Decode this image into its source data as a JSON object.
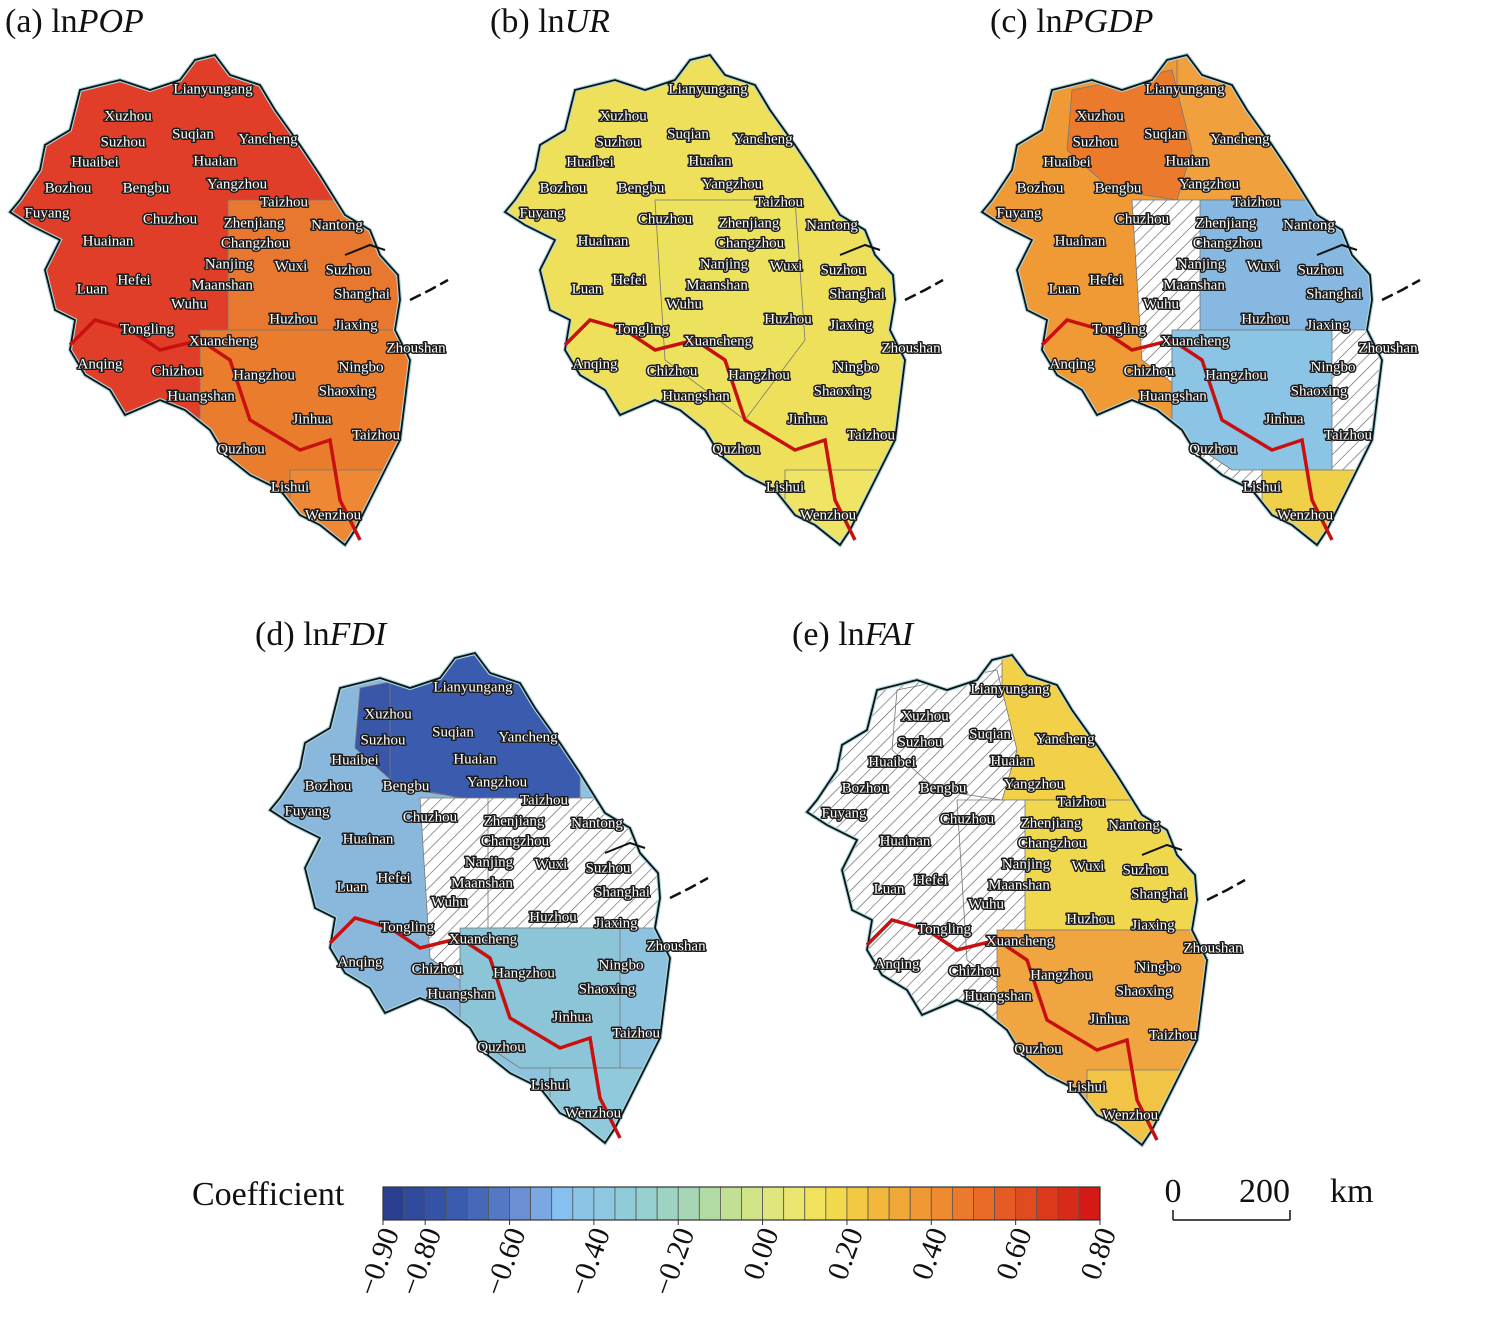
{
  "panels": [
    {
      "prefix": "(a) ln",
      "variable": "POP"
    },
    {
      "prefix": "(b) ln",
      "variable": "UR"
    },
    {
      "prefix": "(c) ln",
      "variable": "PGDP"
    },
    {
      "prefix": "(d) ln",
      "variable": "FDI"
    },
    {
      "prefix": "(e) ln",
      "variable": "FAI"
    }
  ],
  "cities": [
    "Lianyungang",
    "Xuzhou",
    "Suqian",
    "Yancheng",
    "Suzhou",
    "Huaian",
    "Huaibei",
    "Bozhou",
    "Bengbu",
    "Yangzhou",
    "Taizhou",
    "Fuyang",
    "Chuzhou",
    "Zhenjiang",
    "Nantong",
    "Huainan",
    "Changzhou",
    "Nanjing",
    "Wuxi",
    "Suzhou",
    "Hefei",
    "Luan",
    "Maanshan",
    "Shanghai",
    "Wuhu",
    "Huzhou",
    "Jiaxing",
    "Tongling",
    "Zhoushan",
    "Xuancheng",
    "Anqing",
    "Chizhou",
    "Ningbo",
    "Hangzhou",
    "Huangshan",
    "Shaoxing",
    "Jinhua",
    "Taizhou",
    "Quzhou",
    "Lishui",
    "Wenzhou"
  ],
  "legend": {
    "title": "Coefficient",
    "lim": [
      -0.9,
      0.8
    ],
    "ticks": [
      {
        "value": -0.9,
        "label": "−0.90"
      },
      {
        "value": -0.8,
        "label": "−0.80"
      },
      {
        "value": -0.6,
        "label": "−0.60"
      },
      {
        "value": -0.4,
        "label": "−0.40"
      },
      {
        "value": -0.2,
        "label": "−0.20"
      },
      {
        "value": 0,
        "label": "0.00"
      },
      {
        "value": 0.2,
        "label": "0.20"
      },
      {
        "value": 0.4,
        "label": "0.40"
      },
      {
        "value": 0.6,
        "label": "0.60"
      },
      {
        "value": 0.8,
        "label": "0.80"
      }
    ],
    "colors": [
      "#2a3f8f",
      "#2f4a9c",
      "#3553a6",
      "#3b5cae",
      "#4668b8",
      "#5478c4",
      "#6a8fd3",
      "#7ba8e3",
      "#86c0f0",
      "#8cc4e6",
      "#8ec8e0",
      "#90ccd8",
      "#96d0ce",
      "#9dd3c2",
      "#a6d6b4",
      "#b2dba4",
      "#c2e094",
      "#d2e488",
      "#e0e67e",
      "#ebe670",
      "#f0e25c",
      "#f2d84c",
      "#f3c842",
      "#f2b83c",
      "#f0a838",
      "#ef9834",
      "#ee8a30",
      "#ec7a2c",
      "#ea6a28",
      "#e65a24",
      "#e24a20",
      "#dd3a1c",
      "#d82a18",
      "#d41a14"
    ]
  },
  "scale_bar": {
    "ticks": [
      0,
      200
    ],
    "unit": "km"
  }
}
